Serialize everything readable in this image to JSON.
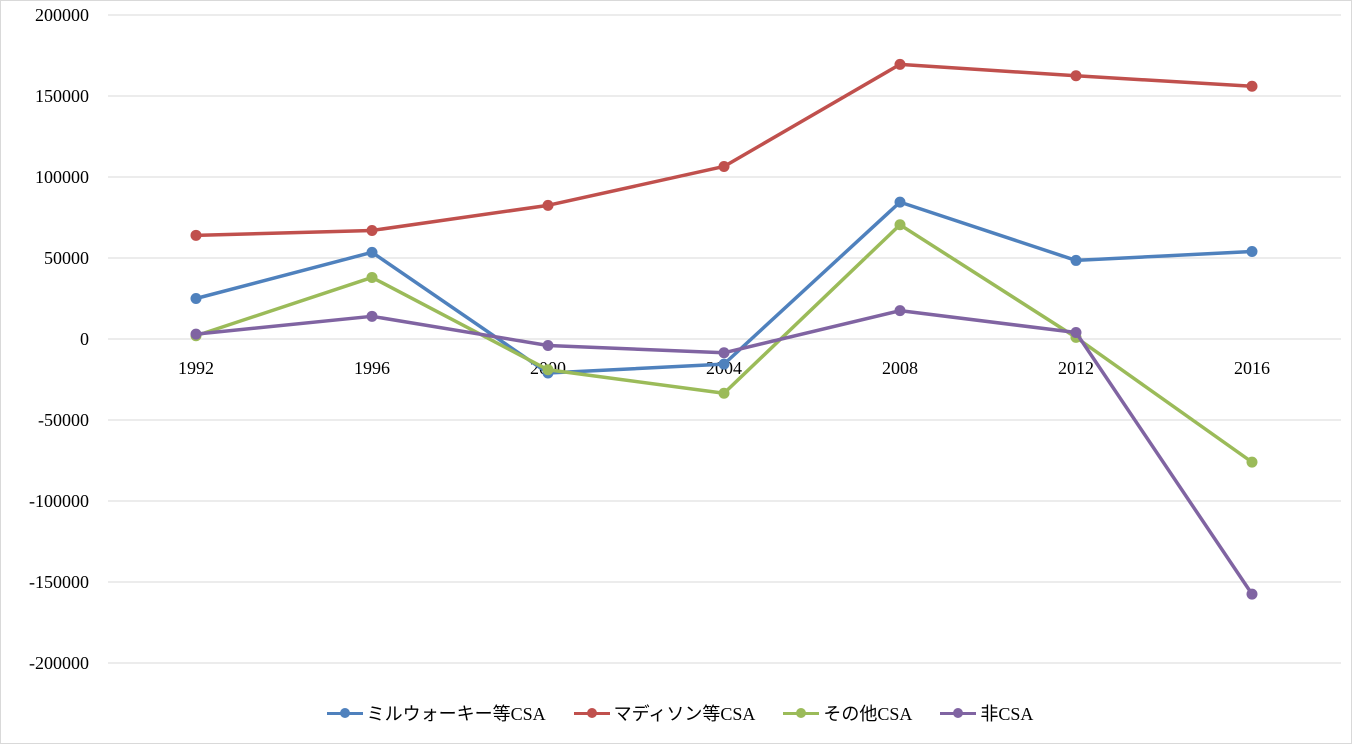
{
  "chart_data": {
    "type": "line",
    "title": "",
    "xlabel": "",
    "ylabel": "",
    "categories": [
      "1992",
      "1996",
      "2000",
      "2004",
      "2008",
      "2012",
      "2016"
    ],
    "ylim": [
      -200000,
      200000
    ],
    "yticks": [
      200000,
      150000,
      100000,
      50000,
      0,
      -50000,
      -100000,
      -150000,
      -200000
    ],
    "ytick_labels": [
      "200000",
      "150000",
      "100000",
      "50000",
      "0",
      "-50000",
      "-100000",
      "-150000",
      "-200000"
    ],
    "grid": true,
    "legend_position": "bottom",
    "series": [
      {
        "name": "ミルウォーキー等CSA",
        "color": "#4F81BD",
        "values": [
          25000,
          53500,
          -21000,
          -15500,
          84500,
          48500,
          54000
        ]
      },
      {
        "name": "マディソン等CSA",
        "color": "#C0504D",
        "values": [
          64000,
          67000,
          82500,
          106500,
          169500,
          162500,
          156000
        ]
      },
      {
        "name": "その他CSA",
        "color": "#9BBB59",
        "values": [
          2000,
          38000,
          -19000,
          -33500,
          70500,
          1000,
          -76000
        ]
      },
      {
        "name": "非CSA",
        "color": "#8064A2",
        "values": [
          3000,
          14000,
          -4000,
          -8500,
          17500,
          4000,
          -157500
        ]
      }
    ]
  }
}
